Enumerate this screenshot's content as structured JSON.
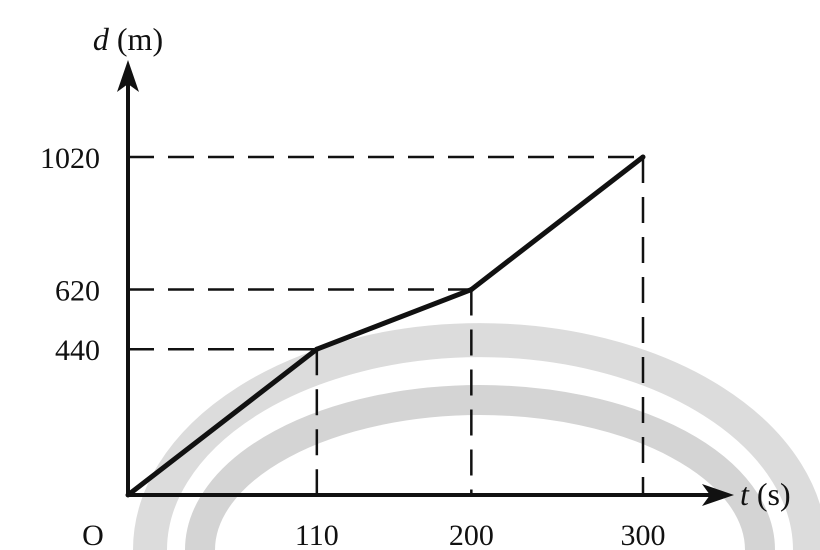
{
  "colors": {
    "background": "#ffffff",
    "ink": "#111111",
    "watermark": "#d9d9d9"
  },
  "chart_data": {
    "type": "line",
    "title": "",
    "xlabel": {
      "symbol": "t",
      "unit": "(s)"
    },
    "ylabel": {
      "symbol": "d",
      "unit": "(m)"
    },
    "origin_label": "O",
    "xlim": [
      0,
      300
    ],
    "ylim": [
      0,
      1020
    ],
    "x_ticks": [
      "110",
      "200",
      "300"
    ],
    "y_ticks": [
      "440",
      "620",
      "1020"
    ],
    "grid": false,
    "legend": "none",
    "dashed_guides": true,
    "series": [
      {
        "x": [
          0,
          110,
          200,
          300
        ],
        "y": [
          0,
          440,
          620,
          1020
        ]
      }
    ]
  }
}
